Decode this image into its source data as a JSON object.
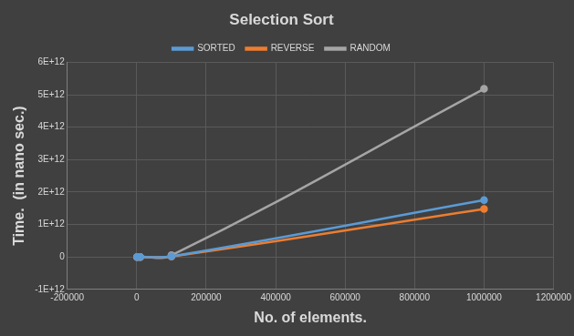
{
  "chart_data": {
    "type": "line",
    "title": "Selection Sort",
    "x_label": "No. of elements.",
    "y_label": "Time.  (in nano sec.)",
    "x": [
      1000,
      10000,
      100000,
      1000000
    ],
    "series": [
      {
        "name": "SORTED",
        "color": "#5b9bd5",
        "values": [
          1800000,
          175000000,
          17500000000,
          1750000000000
        ]
      },
      {
        "name": "REVERSE",
        "color": "#ed7d31",
        "values": [
          1500000,
          148000000,
          14800000000,
          1480000000000
        ]
      },
      {
        "name": "RANDOM",
        "color": "#a5a5a5",
        "values": [
          5200000,
          520000000,
          52000000000,
          5180000000000
        ]
      }
    ],
    "xlim": [
      -200000,
      1200000
    ],
    "xticks": [
      -200000,
      0,
      200000,
      400000,
      600000,
      800000,
      1000000,
      1200000
    ],
    "ylim": [
      -1000000000000,
      6000000000000
    ],
    "yticks": [
      {
        "value": -1000000000000,
        "label": "-1E+12"
      },
      0,
      {
        "value": 1000000000000,
        "label": "1E+12"
      },
      {
        "value": 2000000000000,
        "label": "2E+12"
      },
      {
        "value": 3000000000000,
        "label": "3E+12"
      },
      {
        "value": 4000000000000,
        "label": "4E+12"
      },
      {
        "value": 5000000000000,
        "label": "5E+12"
      },
      {
        "value": 6000000000000,
        "label": "6E+12"
      }
    ],
    "grid": true,
    "legend": "top",
    "marker": "circle",
    "line_style": "solid"
  }
}
